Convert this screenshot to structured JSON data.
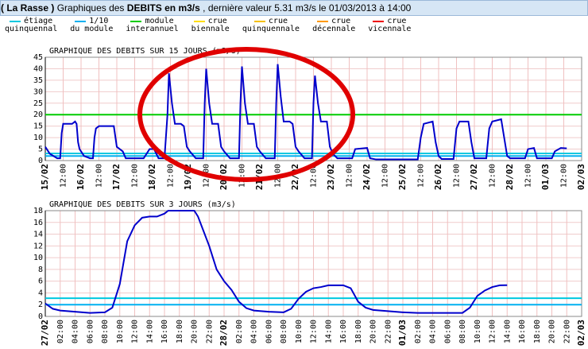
{
  "header": {
    "site": "( La Rasse )",
    "prefix": "Graphiques des",
    "bold": "DEBITS en m3/s",
    "suffix": ", dernière valeur 5.31 m3/s le 01/03/2013 à 14:00"
  },
  "legend": [
    {
      "label": [
        "étiage",
        "quinquennal"
      ],
      "color": "#00c8e0"
    },
    {
      "label": [
        "1/10",
        "du module"
      ],
      "color": "#00b0f0"
    },
    {
      "label": [
        "module",
        "interannuel"
      ],
      "color": "#00cc00"
    },
    {
      "label": [
        "crue",
        "biennale"
      ],
      "color": "#ffdd00"
    },
    {
      "label": [
        "crue",
        "quinquennale"
      ],
      "color": "#f5c000"
    },
    {
      "label": [
        "crue",
        "décennale"
      ],
      "color": "#ff9900"
    },
    {
      "label": [
        "crue",
        "vicennale"
      ],
      "color": "#ee0000"
    }
  ],
  "chart_data": [
    {
      "type": "line",
      "title": "GRAPHIQUE DES DEBITS SUR 15 JOURS (m3/s)",
      "series": [
        {
          "color": "#0000cc",
          "x": [
            0,
            3,
            8,
            10,
            11,
            12,
            18,
            20,
            21,
            22,
            23,
            26,
            30,
            32,
            33,
            34,
            36,
            46,
            48,
            50,
            52,
            54,
            66,
            70,
            73,
            76,
            80,
            82,
            83,
            85,
            87,
            91,
            93,
            95,
            97,
            101,
            106,
            107,
            108,
            110,
            112,
            116,
            118,
            120,
            124,
            130,
            131,
            132,
            134,
            136,
            140,
            142,
            144,
            148,
            154,
            155,
            156,
            158,
            160,
            164,
            166,
            168,
            170,
            174,
            179,
            180,
            181,
            183,
            185,
            189,
            191,
            193,
            196,
            206,
            208,
            216,
            218,
            222,
            250,
            252,
            254,
            260,
            262,
            264,
            266,
            274,
            276,
            278,
            284,
            286,
            288,
            296,
            298,
            300,
            306,
            308,
            310,
            312,
            322,
            324,
            328,
            330,
            336,
            340,
            342,
            346,
            350
          ],
          "values": [
            6,
            3,
            1,
            1,
            12,
            16,
            16,
            17,
            16,
            8,
            5,
            2,
            1,
            1,
            10,
            14,
            15,
            15,
            6,
            5,
            4,
            1,
            1,
            5,
            5,
            1,
            1,
            20,
            38,
            25,
            16,
            16,
            15,
            6,
            4,
            1,
            1,
            25,
            40,
            25,
            16,
            16,
            6,
            4,
            1,
            1,
            25,
            41,
            25,
            16,
            16,
            6,
            4,
            1,
            1,
            25,
            42,
            28,
            17,
            17,
            16,
            6,
            4,
            1,
            1,
            25,
            37,
            25,
            17,
            17,
            6,
            3,
            1,
            1,
            5,
            5.5,
            1,
            0.5,
            0.5,
            10,
            16,
            17,
            8,
            2,
            0.7,
            0.7,
            14,
            17,
            17,
            8,
            1,
            1,
            14,
            17,
            18,
            10,
            2,
            1,
            1,
            5,
            5.5,
            1,
            1,
            1,
            4,
            5.5,
            5.31
          ]
        }
      ],
      "hlines": [
        {
          "value": 20,
          "color": "#00cc00"
        },
        {
          "value": 3.1,
          "color": "#00c8e0"
        },
        {
          "value": 2,
          "color": "#00b0f0"
        }
      ],
      "xlim": [
        0,
        360
      ],
      "xticks": [
        {
          "value": 0,
          "label": "15/02"
        },
        {
          "value": 12,
          "label": "12:00"
        },
        {
          "value": 24,
          "label": "16/02"
        },
        {
          "value": 36,
          "label": "12:00"
        },
        {
          "value": 48,
          "label": "17/02"
        },
        {
          "value": 60,
          "label": "12:00"
        },
        {
          "value": 72,
          "label": "18/02"
        },
        {
          "value": 84,
          "label": "12:00"
        },
        {
          "value": 96,
          "label": "19/02"
        },
        {
          "value": 108,
          "label": "12:00"
        },
        {
          "value": 120,
          "label": "20/02"
        },
        {
          "value": 132,
          "label": "12:00"
        },
        {
          "value": 144,
          "label": "21/02"
        },
        {
          "value": 156,
          "label": "12:00"
        },
        {
          "value": 168,
          "label": "22/02"
        },
        {
          "value": 180,
          "label": "12:00"
        },
        {
          "value": 192,
          "label": "23/02"
        },
        {
          "value": 204,
          "label": "12:00"
        },
        {
          "value": 216,
          "label": "24/02"
        },
        {
          "value": 228,
          "label": "12:00"
        },
        {
          "value": 240,
          "label": "25/02"
        },
        {
          "value": 252,
          "label": "12:00"
        },
        {
          "value": 264,
          "label": "26/02"
        },
        {
          "value": 276,
          "label": "12:00"
        },
        {
          "value": 288,
          "label": "27/02"
        },
        {
          "value": 300,
          "label": "12:00"
        },
        {
          "value": 312,
          "label": "28/02"
        },
        {
          "value": 324,
          "label": "12:00"
        },
        {
          "value": 336,
          "label": "01/03"
        },
        {
          "value": 348,
          "label": "12:00"
        },
        {
          "value": 360,
          "label": "02/03"
        }
      ],
      "ylim": [
        0,
        45
      ],
      "yticks": [
        0,
        5,
        10,
        15,
        20,
        25,
        30,
        35,
        40,
        45
      ],
      "grid": true
    },
    {
      "type": "line",
      "title": "GRAPHIQUE DES DEBITS SUR 3 JOURS (m3/s)",
      "series": [
        {
          "color": "#0000cc",
          "x": [
            0,
            1,
            2,
            4,
            6,
            8,
            9,
            10,
            11,
            12,
            13,
            14,
            15,
            16,
            16.5,
            20,
            20.5,
            22,
            23,
            24,
            25,
            26,
            27,
            28,
            30,
            32,
            33,
            34,
            35,
            36,
            37,
            38,
            40,
            41,
            42,
            43,
            44,
            46,
            48,
            50,
            56,
            57,
            58,
            59,
            60,
            61,
            62
          ],
          "values": [
            2.2,
            1.3,
            1,
            0.8,
            0.6,
            0.7,
            1.5,
            5.5,
            12.8,
            15.5,
            16.8,
            17,
            17,
            17.5,
            18,
            18,
            17,
            12,
            8,
            6,
            4.5,
            2.5,
            1.4,
            1,
            0.8,
            0.7,
            1.3,
            3,
            4.2,
            4.8,
            5,
            5.3,
            5.3,
            4.8,
            2.5,
            1.5,
            1.1,
            0.9,
            0.7,
            0.6,
            0.6,
            1.5,
            3.5,
            4.4,
            5,
            5.3,
            5.31
          ]
        }
      ],
      "hlines": [
        {
          "value": 3.1,
          "color": "#00c8e0"
        },
        {
          "value": 2,
          "color": "#00b0f0"
        }
      ],
      "xlim": [
        0,
        72
      ],
      "xticks": [
        {
          "value": 0,
          "label": "27/02"
        },
        {
          "value": 2,
          "label": "02:00"
        },
        {
          "value": 4,
          "label": "04:00"
        },
        {
          "value": 6,
          "label": "06:00"
        },
        {
          "value": 8,
          "label": "08:00"
        },
        {
          "value": 10,
          "label": "10:00"
        },
        {
          "value": 12,
          "label": "12:00"
        },
        {
          "value": 14,
          "label": "14:00"
        },
        {
          "value": 16,
          "label": "16:00"
        },
        {
          "value": 18,
          "label": "18:00"
        },
        {
          "value": 20,
          "label": "20:00"
        },
        {
          "value": 22,
          "label": "22:00"
        },
        {
          "value": 24,
          "label": "28/02"
        },
        {
          "value": 26,
          "label": "02:00"
        },
        {
          "value": 28,
          "label": "04:00"
        },
        {
          "value": 30,
          "label": "06:00"
        },
        {
          "value": 32,
          "label": "08:00"
        },
        {
          "value": 34,
          "label": "10:00"
        },
        {
          "value": 36,
          "label": "12:00"
        },
        {
          "value": 38,
          "label": "14:00"
        },
        {
          "value": 40,
          "label": "16:00"
        },
        {
          "value": 42,
          "label": "18:00"
        },
        {
          "value": 44,
          "label": "20:00"
        },
        {
          "value": 46,
          "label": "22:00"
        },
        {
          "value": 48,
          "label": "01/03"
        },
        {
          "value": 50,
          "label": "02:00"
        },
        {
          "value": 52,
          "label": "04:00"
        },
        {
          "value": 54,
          "label": "06:00"
        },
        {
          "value": 56,
          "label": "08:00"
        },
        {
          "value": 58,
          "label": "10:00"
        },
        {
          "value": 60,
          "label": "12:00"
        },
        {
          "value": 62,
          "label": "14:00"
        },
        {
          "value": 64,
          "label": "16:00"
        },
        {
          "value": 66,
          "label": "18:00"
        },
        {
          "value": 68,
          "label": "20:00"
        },
        {
          "value": 70,
          "label": "22:00"
        },
        {
          "value": 72,
          "label": "02/03"
        }
      ],
      "ylim": [
        0,
        18
      ],
      "yticks": [
        0,
        2,
        4,
        6,
        8,
        10,
        12,
        14,
        16,
        18
      ],
      "grid": true
    }
  ]
}
